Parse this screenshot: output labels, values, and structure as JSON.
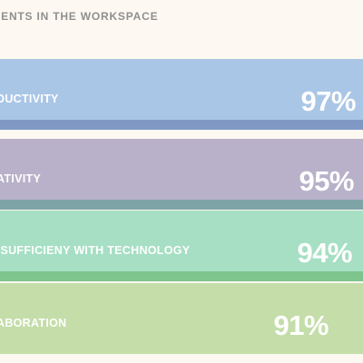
{
  "title": "IENTS IN THE WORKSPACE",
  "chart_data": {
    "type": "bar",
    "orientation": "horizontal",
    "title": "IENTS IN THE WORKSPACE",
    "categories": [
      "DUCTIVITY",
      "ATIVITY",
      "-SUFFICIENY WITH TECHNOLOGY",
      "ABORATION"
    ],
    "values": [
      97,
      95,
      94,
      91
    ],
    "value_labels": [
      "97%",
      "95%",
      "94%",
      "91%"
    ],
    "unit": "%",
    "colors": [
      {
        "fill": "#aac6e6",
        "edge": "#7f99c4"
      },
      {
        "fill": "#b8b1c9",
        "edge": "#7fa4a8"
      },
      {
        "fill": "#a6dfc3",
        "edge": "#7dc48d"
      },
      {
        "fill": "#c4dda9",
        "edge": "#c4dda9"
      }
    ],
    "legend": "none",
    "grid": false
  }
}
